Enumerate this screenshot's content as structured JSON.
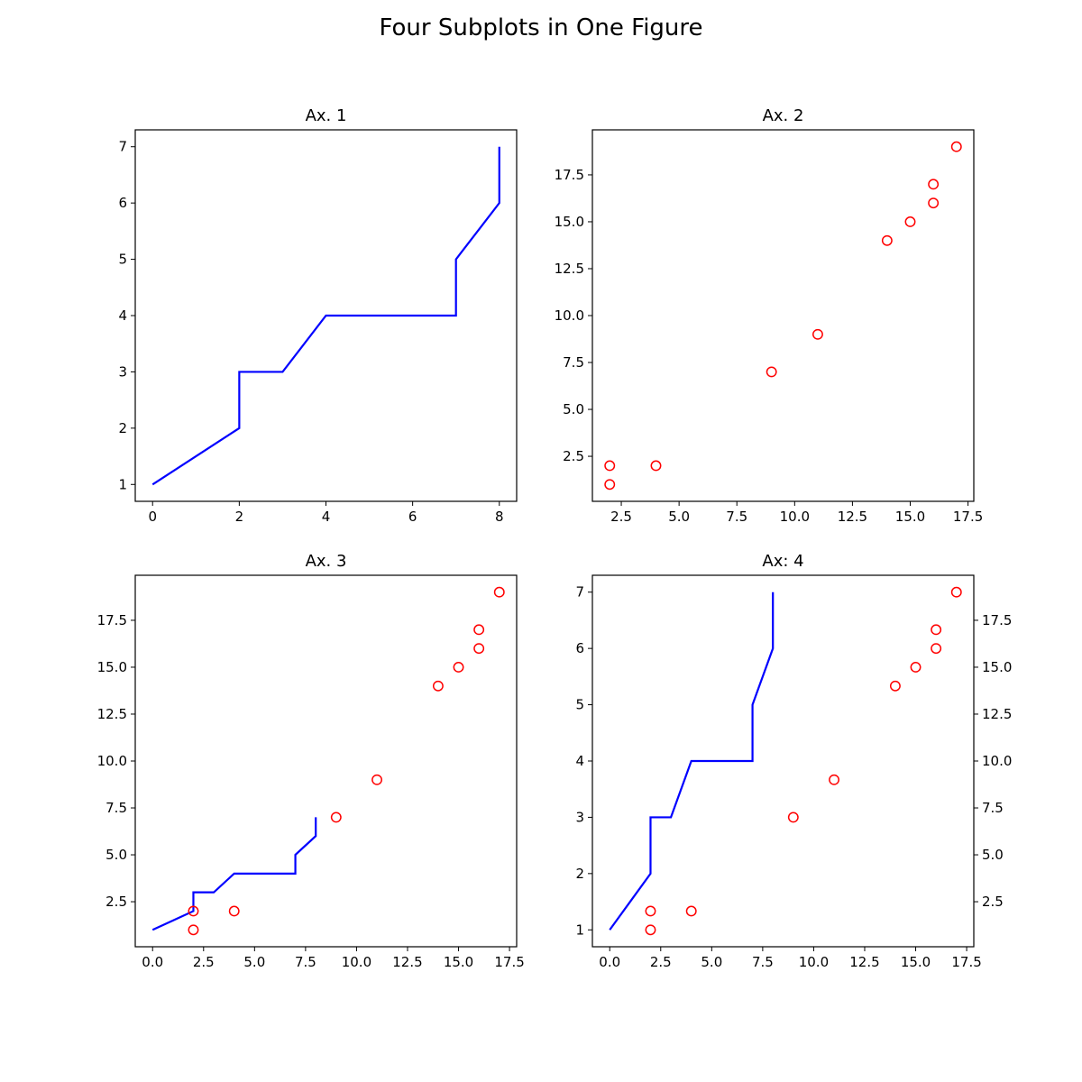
{
  "figure": {
    "title": "Four Subplots in One Figure"
  },
  "chart_data": [
    {
      "type": "line",
      "title": "Ax. 1",
      "xlabel": "",
      "ylabel": "",
      "xlim": [
        -0.4,
        8.4
      ],
      "ylim": [
        0.7,
        7.3
      ],
      "xticks": [
        0,
        2,
        4,
        6,
        8
      ],
      "xtick_labels": [
        "0",
        "2",
        "4",
        "6",
        "8"
      ],
      "yticks": [
        1,
        2,
        3,
        4,
        5,
        6,
        7
      ],
      "ytick_labels": [
        "1",
        "2",
        "3",
        "4",
        "5",
        "6",
        "7"
      ],
      "grid": false,
      "series": [
        {
          "kind": "line",
          "color": "#0000ff",
          "x": [
            0,
            1,
            2,
            2,
            3,
            4,
            5,
            6,
            7,
            7,
            8,
            8
          ],
          "y": [
            1,
            1.5,
            2,
            3,
            3,
            4,
            4,
            4,
            4,
            5,
            6,
            7
          ]
        }
      ]
    },
    {
      "type": "scatter",
      "title": "Ax. 2",
      "xlabel": "",
      "ylabel": "",
      "xlim": [
        1.25,
        17.75
      ],
      "ylim": [
        0.1,
        19.9
      ],
      "xticks": [
        2.5,
        5,
        7.5,
        10,
        12.5,
        15,
        17.5
      ],
      "xtick_labels": [
        "2.5",
        "5.0",
        "7.5",
        "10.0",
        "12.5",
        "15.0",
        "17.5"
      ],
      "yticks": [
        2.5,
        5,
        7.5,
        10,
        12.5,
        15,
        17.5
      ],
      "ytick_labels": [
        "2.5",
        "5.0",
        "7.5",
        "10.0",
        "12.5",
        "15.0",
        "17.5"
      ],
      "grid": false,
      "series": [
        {
          "kind": "scatter",
          "color": "#ff0000",
          "marker": "open-circle",
          "x": [
            2,
            2,
            4,
            9,
            11,
            14,
            15,
            16,
            16,
            17
          ],
          "y": [
            1,
            2,
            2,
            7,
            9,
            14,
            15,
            16,
            17,
            19
          ]
        }
      ]
    },
    {
      "type": "scatter",
      "title": "Ax. 3",
      "xlabel": "",
      "ylabel": "",
      "xlim": [
        -0.85,
        17.85
      ],
      "ylim": [
        0.1,
        19.9
      ],
      "xticks": [
        0,
        2.5,
        5,
        7.5,
        10,
        12.5,
        15,
        17.5
      ],
      "xtick_labels": [
        "0.0",
        "2.5",
        "5.0",
        "7.5",
        "10.0",
        "12.5",
        "15.0",
        "17.5"
      ],
      "yticks": [
        2.5,
        5,
        7.5,
        10,
        12.5,
        15,
        17.5
      ],
      "ytick_labels": [
        "2.5",
        "5.0",
        "7.5",
        "10.0",
        "12.5",
        "15.0",
        "17.5"
      ],
      "grid": false,
      "series": [
        {
          "kind": "line",
          "color": "#0000ff",
          "x": [
            0,
            1,
            2,
            2,
            3,
            4,
            5,
            6,
            7,
            7,
            8,
            8
          ],
          "y": [
            1,
            1.5,
            2,
            3,
            3,
            4,
            4,
            4,
            4,
            5,
            6,
            7
          ]
        },
        {
          "kind": "scatter",
          "color": "#ff0000",
          "marker": "open-circle",
          "x": [
            2,
            2,
            4,
            9,
            11,
            14,
            15,
            16,
            16,
            17
          ],
          "y": [
            1,
            2,
            2,
            7,
            9,
            14,
            15,
            16,
            17,
            19
          ]
        }
      ]
    },
    {
      "type": "scatter",
      "title": "Ax: 4",
      "xlabel": "",
      "ylabel": "",
      "twin_y": true,
      "xlim": [
        -0.85,
        17.85
      ],
      "ylim": [
        0.7,
        7.3
      ],
      "ylim_right": [
        0.1,
        19.9
      ],
      "xticks": [
        0,
        2.5,
        5,
        7.5,
        10,
        12.5,
        15,
        17.5
      ],
      "xtick_labels": [
        "0.0",
        "2.5",
        "5.0",
        "7.5",
        "10.0",
        "12.5",
        "15.0",
        "17.5"
      ],
      "yticks": [
        1,
        2,
        3,
        4,
        5,
        6,
        7
      ],
      "ytick_labels": [
        "1",
        "2",
        "3",
        "4",
        "5",
        "6",
        "7"
      ],
      "yticks_right": [
        2.5,
        5,
        7.5,
        10,
        12.5,
        15,
        17.5
      ],
      "ytick_labels_right": [
        "2.5",
        "5.0",
        "7.5",
        "10.0",
        "12.5",
        "15.0",
        "17.5"
      ],
      "grid": false,
      "series": [
        {
          "kind": "line",
          "axis": "left",
          "color": "#0000ff",
          "x": [
            0,
            1,
            2,
            2,
            3,
            4,
            5,
            6,
            7,
            7,
            8,
            8
          ],
          "y": [
            1,
            1.5,
            2,
            3,
            3,
            4,
            4,
            4,
            4,
            5,
            6,
            7
          ]
        },
        {
          "kind": "scatter",
          "axis": "right",
          "color": "#ff0000",
          "marker": "open-circle",
          "x": [
            2,
            2,
            4,
            9,
            11,
            14,
            15,
            16,
            16,
            17
          ],
          "y": [
            1,
            2,
            2,
            7,
            9,
            14,
            15,
            16,
            17,
            19
          ]
        }
      ]
    }
  ]
}
